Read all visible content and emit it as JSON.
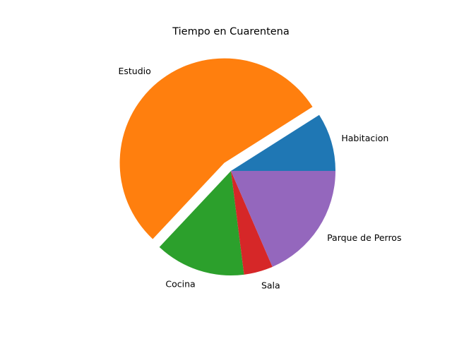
{
  "chart_data": {
    "type": "pie",
    "title": "Tiempo en Cuarentena",
    "categories": [
      "Habitacion",
      "Estudio",
      "Cocina",
      "Sala",
      "Parque de Perros"
    ],
    "values": [
      9,
      54,
      14,
      4.5,
      18.5
    ],
    "colors": [
      "#1f77b4",
      "#ff7f0e",
      "#2ca02c",
      "#d62728",
      "#9467bd"
    ],
    "explode": [
      0,
      0.1,
      0,
      0,
      0
    ],
    "start_angle": 0,
    "direction": "counterclockwise",
    "legend": "none"
  }
}
